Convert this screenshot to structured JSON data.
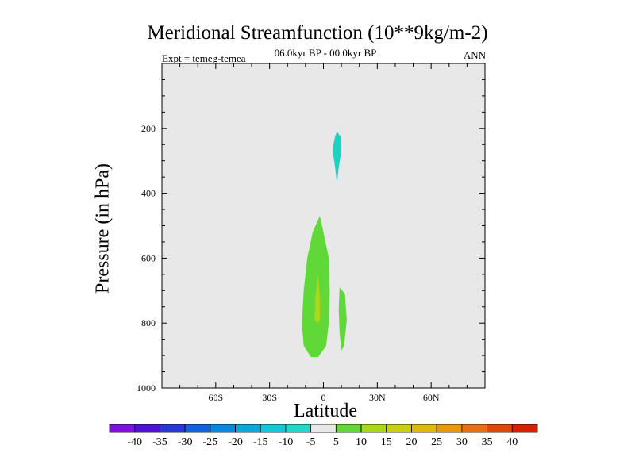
{
  "chart_data": {
    "type": "contour",
    "title": "Meridional Streamfunction (10**9kg/m-2)",
    "subtitle": "06.0kyr BP - 00.0kyr BP",
    "left_label": "Expt = temeg-temea",
    "right_label": "ANN",
    "xlabel": "Latitude",
    "ylabel": "Pressure (in hPa)",
    "xlim": [
      -90,
      90
    ],
    "ylim": [
      1000,
      0
    ],
    "x_ticks": [
      {
        "value": -60,
        "label": "60S"
      },
      {
        "value": -30,
        "label": "30S"
      },
      {
        "value": 0,
        "label": "0"
      },
      {
        "value": 30,
        "label": "30N"
      },
      {
        "value": 60,
        "label": "60N"
      }
    ],
    "y_ticks": [
      {
        "value": 200,
        "label": "200"
      },
      {
        "value": 400,
        "label": "400"
      },
      {
        "value": 600,
        "label": "600"
      },
      {
        "value": 800,
        "label": "800"
      },
      {
        "value": 1000,
        "label": "1000"
      }
    ],
    "background_color": "#e8e8e8",
    "contour_regions": [
      {
        "name": "upper-negative-cell",
        "level_range": [
          -10,
          -5
        ],
        "color": "#20d0c0",
        "points": [
          [
            7.5,
            210
          ],
          [
            9.5,
            225
          ],
          [
            10,
            270
          ],
          [
            8.5,
            320
          ],
          [
            7.5,
            370
          ],
          [
            6.5,
            320
          ],
          [
            5,
            265
          ],
          [
            6.5,
            225
          ]
        ]
      },
      {
        "name": "lower-positive-cell",
        "level_range": [
          5,
          10
        ],
        "color": "#60d838",
        "points": [
          [
            -2,
            470
          ],
          [
            0,
            520
          ],
          [
            3,
            600
          ],
          [
            3.5,
            700
          ],
          [
            3,
            800
          ],
          [
            1.5,
            870
          ],
          [
            -3,
            905
          ],
          [
            -7,
            905
          ],
          [
            -11,
            870
          ],
          [
            -12,
            800
          ],
          [
            -11,
            700
          ],
          [
            -9,
            600
          ],
          [
            -6,
            520
          ]
        ]
      },
      {
        "name": "lower-positive-core",
        "level_range": [
          10,
          15
        ],
        "color": "#a8d818",
        "points": [
          [
            -3,
            650
          ],
          [
            -2,
            720
          ],
          [
            -2,
            790
          ],
          [
            -3,
            800
          ],
          [
            -5,
            790
          ],
          [
            -4.5,
            720
          ]
        ]
      },
      {
        "name": "right-positive-cell",
        "level_range": [
          5,
          10
        ],
        "color": "#60d838",
        "points": [
          [
            9,
            690
          ],
          [
            12,
            710
          ],
          [
            13,
            790
          ],
          [
            11.5,
            870
          ],
          [
            10,
            885
          ],
          [
            9,
            830
          ],
          [
            8.5,
            760
          ]
        ]
      }
    ],
    "colorbar": {
      "labels": [
        "-40",
        "-35",
        "-30",
        "-25",
        "-20",
        "-15",
        "-10",
        "-5",
        "5",
        "10",
        "15",
        "20",
        "25",
        "30",
        "35",
        "40"
      ],
      "colors": [
        "#8010e0",
        "#5010d8",
        "#2838d8",
        "#1060e0",
        "#0888e0",
        "#08a8d8",
        "#10c8d8",
        "#20d8c8",
        "#e8e8e8",
        "#60d838",
        "#a8d818",
        "#c8d010",
        "#e0b808",
        "#e89808",
        "#e87010",
        "#e04808",
        "#d82000"
      ]
    }
  }
}
